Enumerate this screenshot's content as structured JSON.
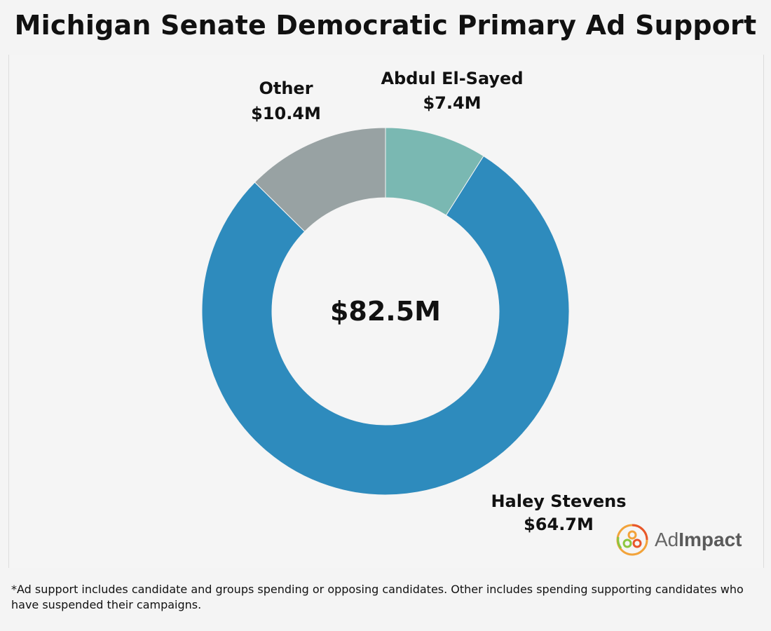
{
  "title": "Michigan Senate Democratic Primary Ad Support",
  "chart_data": {
    "type": "pie",
    "subtype": "donut",
    "title": "Michigan Senate Democratic Primary Ad Support",
    "center_label": "$82.5M",
    "total": 82.5,
    "unit": "$M",
    "slices": [
      {
        "label": "Abdul El-Sayed",
        "value": 7.4,
        "value_label": "$7.4M",
        "color": "#7ab8b2"
      },
      {
        "label": "Haley Stevens",
        "value": 64.7,
        "value_label": "$64.7M",
        "color": "#2e8bbd"
      },
      {
        "label": "Other",
        "value": 10.4,
        "value_label": "$10.4M",
        "color": "#98a2a3"
      }
    ]
  },
  "logo": {
    "text_light": "Ad",
    "text_bold": "Impact",
    "icon": "adimpact-logo-icon"
  },
  "footnote": "*Ad support includes candidate and groups spending or opposing candidates. Other includes spending supporting candidates who have suspended their campaigns."
}
